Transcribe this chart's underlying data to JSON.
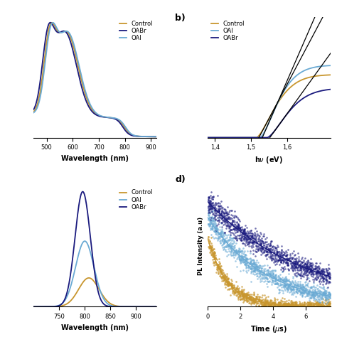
{
  "colors": {
    "control": "#C8962E",
    "oabr": "#1a1a7e",
    "oai": "#6aaad4"
  },
  "bg_color": "#f0f0f0",
  "panel_b_xticks": [
    "1,4",
    "1,5",
    "1,6"
  ],
  "panel_b_xtick_vals": [
    1.4,
    1.5,
    1.6
  ]
}
